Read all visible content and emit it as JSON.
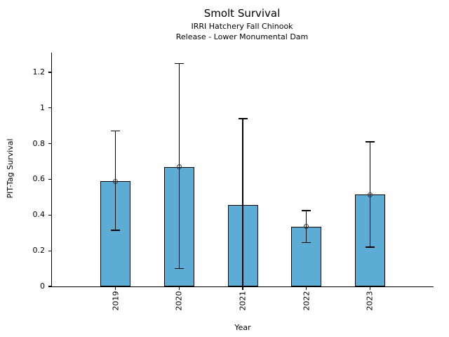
{
  "chart_data": {
    "type": "bar",
    "title": "Smolt Survival",
    "subtitle": [
      "IRRI Hatchery Fall Chinook",
      "Release - Lower Monumental Dam"
    ],
    "xlabel": "Year",
    "ylabel": "PIT-Tag Survival",
    "categories": [
      "2019",
      "2020",
      "2021",
      "2022",
      "2023"
    ],
    "values": [
      0.59,
      0.67,
      0.455,
      0.335,
      0.515
    ],
    "error_low": [
      0.315,
      0.1,
      0.0,
      0.245,
      0.22
    ],
    "error_high": [
      0.87,
      1.25,
      0.94,
      0.425,
      0.81
    ],
    "point_marker_visible": [
      true,
      true,
      false,
      true,
      true
    ],
    "yticks": [
      0,
      0.2,
      0.4,
      0.6,
      0.8,
      1.0,
      1.2
    ],
    "ytick_labels": [
      "0",
      "0.2",
      "0.4",
      "0.6",
      "0.8",
      "1",
      "1.2"
    ],
    "ylim": [
      0,
      1.31
    ],
    "grid": false,
    "legend": null,
    "colors": {
      "bar_fill": "#5CACD6",
      "bar_edge": "#000000",
      "error_bar": "#000000",
      "marker_edge": "#333333",
      "background": "#ffffff",
      "text": "#000000"
    }
  }
}
